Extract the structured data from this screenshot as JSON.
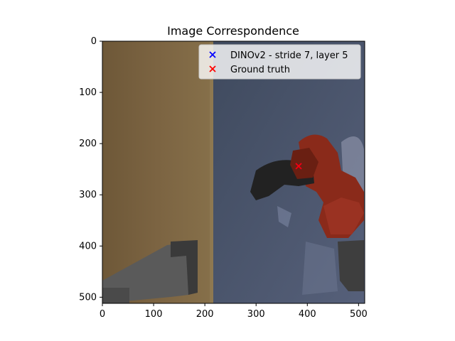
{
  "title": "Image Correspondence",
  "chart_data": {
    "type": "scatter",
    "title": "Image Correspondence",
    "xlabel": "",
    "ylabel": "",
    "xlim": [
      0,
      512
    ],
    "ylim": [
      512,
      0
    ],
    "x_ticks": [
      "0",
      "100",
      "200",
      "300",
      "400",
      "500"
    ],
    "y_ticks": [
      "0",
      "100",
      "200",
      "300",
      "400",
      "500"
    ],
    "x_tick_values": [
      0,
      100,
      200,
      300,
      400,
      500
    ],
    "y_tick_values": [
      0,
      100,
      200,
      300,
      400,
      500
    ],
    "legend_position": "top-right",
    "series": [
      {
        "name": "DINOv2 - stride 7, layer 5",
        "marker": "x",
        "color": "#0000ff",
        "points": [
          [
            383,
            244
          ]
        ]
      },
      {
        "name": "Ground truth",
        "marker": "x",
        "color": "#ff0000",
        "points": [
          [
            383,
            244
          ]
        ]
      }
    ]
  },
  "image_description_icon": "scene-image",
  "colors": {
    "wood": "#7a6240",
    "wall": "#4a5468",
    "drill_red": "#8a2a1a",
    "drill_black": "#222222",
    "robot_gray": "#5a5a5a"
  }
}
